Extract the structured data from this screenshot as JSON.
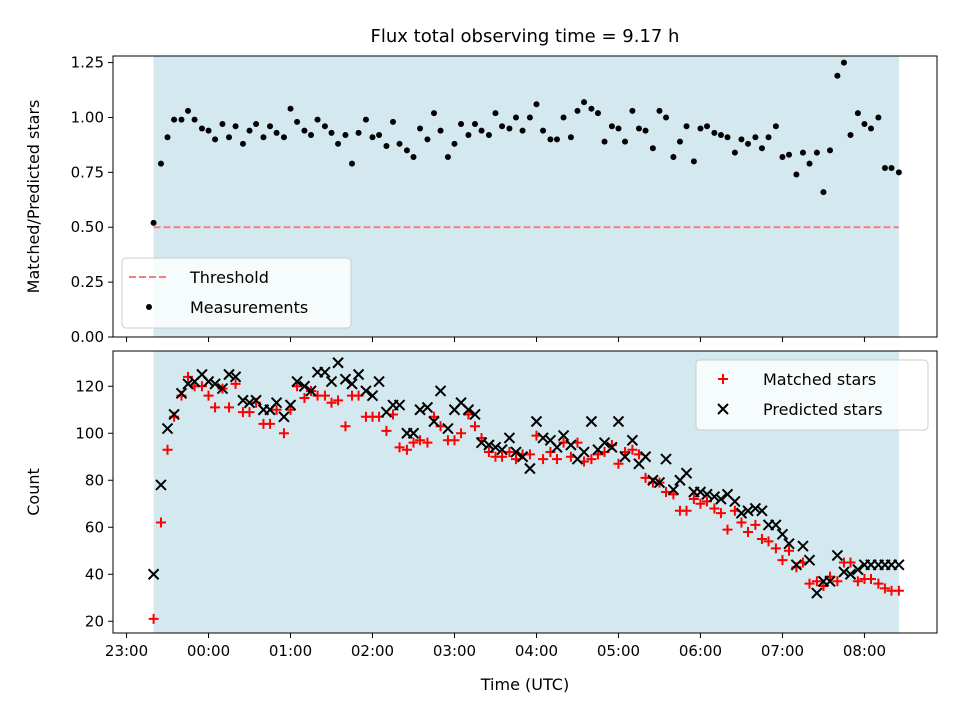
{
  "chart_data": [
    {
      "type": "scatter",
      "title": "Flux total observing time = 9.17 h",
      "ylabel": "Matched/Predicted stars",
      "xlabel": "",
      "ylim": [
        0,
        1.28
      ],
      "yticks": [
        "0.00",
        "0.25",
        "0.50",
        "0.75",
        "1.00",
        "1.25"
      ],
      "ytick_values": [
        0,
        0.25,
        0.5,
        0.75,
        1.0,
        1.25
      ],
      "grid": false,
      "legend_position": "lower-left",
      "shaded_interval": {
        "start": 23.33,
        "end": 8.42,
        "color": "#d3e9ef"
      },
      "threshold": {
        "name": "Threshold",
        "value": 0.5,
        "color": "#f47f7f",
        "style": "dashed"
      },
      "series": [
        {
          "name": "Measurements",
          "color": "#000000",
          "marker": "dot",
          "x": [
            23.33,
            23.42,
            23.5,
            23.58,
            23.67,
            23.75,
            23.83,
            23.92,
            0.0,
            0.08,
            0.17,
            0.25,
            0.33,
            0.42,
            0.5,
            0.58,
            0.67,
            0.75,
            0.83,
            0.92,
            1.0,
            1.08,
            1.17,
            1.25,
            1.33,
            1.42,
            1.5,
            1.58,
            1.67,
            1.75,
            1.83,
            1.92,
            2.0,
            2.08,
            2.17,
            2.25,
            2.33,
            2.42,
            2.5,
            2.58,
            2.67,
            2.75,
            2.83,
            2.92,
            3.0,
            3.08,
            3.17,
            3.25,
            3.33,
            3.42,
            3.5,
            3.58,
            3.67,
            3.75,
            3.83,
            3.92,
            4.0,
            4.08,
            4.17,
            4.25,
            4.33,
            4.42,
            4.5,
            4.58,
            4.67,
            4.75,
            4.83,
            4.92,
            5.0,
            5.08,
            5.17,
            5.25,
            5.33,
            5.42,
            5.5,
            5.58,
            5.67,
            5.75,
            5.83,
            5.92,
            6.0,
            6.08,
            6.17,
            6.25,
            6.33,
            6.42,
            6.5,
            6.58,
            6.67,
            6.75,
            6.83,
            6.92,
            7.0,
            7.08,
            7.17,
            7.25,
            7.33,
            7.42,
            7.5,
            7.58,
            7.67,
            7.75,
            7.83,
            7.92,
            8.0,
            8.08,
            8.17,
            8.25,
            8.33,
            8.42
          ],
          "values": [
            0.52,
            0.79,
            0.91,
            0.99,
            0.99,
            1.03,
            0.99,
            0.95,
            0.94,
            0.9,
            0.97,
            0.91,
            0.96,
            0.88,
            0.94,
            0.97,
            0.91,
            0.96,
            0.93,
            0.91,
            1.04,
            0.98,
            0.94,
            0.92,
            0.99,
            0.96,
            0.93,
            0.88,
            0.92,
            0.79,
            0.93,
            0.99,
            0.91,
            0.92,
            0.87,
            0.98,
            0.88,
            0.85,
            0.82,
            0.95,
            0.9,
            1.02,
            0.94,
            0.82,
            0.88,
            0.97,
            0.92,
            0.97,
            0.94,
            0.92,
            1.02,
            0.96,
            0.95,
            1.0,
            0.94,
            1.0,
            1.06,
            0.94,
            0.9,
            0.9,
            1.0,
            0.91,
            1.03,
            1.07,
            1.04,
            1.02,
            0.89,
            0.96,
            0.95,
            0.89,
            1.03,
            0.95,
            0.94,
            0.86,
            1.03,
            1.0,
            0.82,
            0.89,
            0.96,
            0.8,
            0.95,
            0.96,
            0.93,
            0.92,
            0.91,
            0.84,
            0.9,
            0.88,
            0.91,
            0.86,
            0.91,
            0.96,
            0.82,
            0.83,
            0.74,
            0.84,
            0.79,
            0.84,
            0.66,
            0.85,
            1.19,
            1.25,
            0.92,
            1.02,
            0.97,
            0.95,
            1.0,
            0.77,
            0.77,
            0.75
          ]
        }
      ]
    },
    {
      "type": "scatter",
      "title": "",
      "ylabel": "Count",
      "xlabel": "Time (UTC)",
      "ylim": [
        15,
        135
      ],
      "yticks": [
        "20",
        "40",
        "60",
        "80",
        "100",
        "120"
      ],
      "ytick_values": [
        20,
        40,
        60,
        80,
        100,
        120
      ],
      "xticks": [
        "23:00",
        "00:00",
        "01:00",
        "02:00",
        "03:00",
        "04:00",
        "05:00",
        "06:00",
        "07:00",
        "08:00"
      ],
      "xtick_values": [
        23,
        0,
        1,
        2,
        3,
        4,
        5,
        6,
        7,
        8
      ],
      "grid": false,
      "legend_position": "upper-right",
      "shaded_interval": {
        "start": 23.33,
        "end": 8.42,
        "color": "#d3e9ef"
      },
      "series": [
        {
          "name": "Matched stars",
          "color": "#ff0000",
          "marker": "plus",
          "x": [
            23.33,
            23.42,
            23.5,
            23.58,
            23.67,
            23.75,
            23.83,
            23.92,
            0.0,
            0.08,
            0.17,
            0.25,
            0.33,
            0.42,
            0.5,
            0.58,
            0.67,
            0.75,
            0.83,
            0.92,
            1.0,
            1.08,
            1.17,
            1.25,
            1.33,
            1.42,
            1.5,
            1.58,
            1.67,
            1.75,
            1.83,
            1.92,
            2.0,
            2.08,
            2.17,
            2.25,
            2.33,
            2.42,
            2.5,
            2.58,
            2.67,
            2.75,
            2.83,
            2.92,
            3.0,
            3.08,
            3.17,
            3.25,
            3.33,
            3.42,
            3.5,
            3.58,
            3.67,
            3.75,
            3.83,
            3.92,
            4.0,
            4.08,
            4.17,
            4.25,
            4.33,
            4.42,
            4.5,
            4.58,
            4.67,
            4.75,
            4.83,
            4.92,
            5.0,
            5.08,
            5.17,
            5.25,
            5.33,
            5.42,
            5.5,
            5.58,
            5.67,
            5.75,
            5.83,
            5.92,
            6.0,
            6.08,
            6.17,
            6.25,
            6.33,
            6.42,
            6.5,
            6.58,
            6.67,
            6.75,
            6.83,
            6.92,
            7.0,
            7.08,
            7.17,
            7.25,
            7.33,
            7.42,
            7.5,
            7.58,
            7.67,
            7.75,
            7.83,
            7.92,
            8.0,
            8.08,
            8.17,
            8.25,
            8.33,
            8.42
          ],
          "values": [
            21,
            62,
            93,
            107,
            116,
            124,
            120,
            120,
            116,
            111,
            119,
            111,
            121,
            109,
            109,
            113,
            104,
            104,
            110,
            100,
            110,
            120,
            115,
            118,
            116,
            116,
            113,
            114,
            103,
            116,
            116,
            107,
            107,
            107,
            101,
            108,
            94,
            93,
            96,
            97,
            96,
            107,
            103,
            97,
            97,
            100,
            108,
            103,
            98,
            92,
            90,
            90,
            92,
            89,
            91,
            91,
            99,
            89,
            92,
            89,
            96,
            90,
            96,
            88,
            89,
            91,
            92,
            95,
            87,
            92,
            93,
            91,
            81,
            79,
            79,
            75,
            74,
            67,
            67,
            72,
            70,
            71,
            68,
            66,
            59,
            67,
            62,
            58,
            61,
            55,
            54,
            51,
            46,
            50,
            43,
            45,
            36,
            37,
            35,
            39,
            37,
            45,
            45,
            37,
            38,
            38,
            36,
            34,
            33,
            33
          ]
        },
        {
          "name": "Predicted stars",
          "color": "#000000",
          "marker": "x",
          "x": [
            23.33,
            23.42,
            23.5,
            23.58,
            23.67,
            23.75,
            23.83,
            23.92,
            0.0,
            0.08,
            0.17,
            0.25,
            0.33,
            0.42,
            0.5,
            0.58,
            0.67,
            0.75,
            0.83,
            0.92,
            1.0,
            1.08,
            1.17,
            1.25,
            1.33,
            1.42,
            1.5,
            1.58,
            1.67,
            1.75,
            1.83,
            1.92,
            2.0,
            2.08,
            2.17,
            2.25,
            2.33,
            2.42,
            2.5,
            2.58,
            2.67,
            2.75,
            2.83,
            2.92,
            3.0,
            3.08,
            3.17,
            3.25,
            3.33,
            3.42,
            3.5,
            3.58,
            3.67,
            3.75,
            3.83,
            3.92,
            4.0,
            4.08,
            4.17,
            4.25,
            4.33,
            4.42,
            4.5,
            4.58,
            4.67,
            4.75,
            4.83,
            4.92,
            5.0,
            5.08,
            5.17,
            5.25,
            5.33,
            5.42,
            5.5,
            5.58,
            5.67,
            5.75,
            5.83,
            5.92,
            6.0,
            6.08,
            6.17,
            6.25,
            6.33,
            6.42,
            6.5,
            6.58,
            6.67,
            6.75,
            6.83,
            6.92,
            7.0,
            7.08,
            7.17,
            7.25,
            7.33,
            7.42,
            7.5,
            7.58,
            7.67,
            7.75,
            7.83,
            7.92,
            8.0,
            8.08,
            8.17,
            8.25,
            8.33,
            8.42
          ],
          "values": [
            40,
            78,
            102,
            108,
            117,
            121,
            122,
            125,
            122,
            121,
            119,
            125,
            124,
            114,
            113,
            114,
            110,
            110,
            113,
            107,
            112,
            122,
            120,
            118,
            126,
            126,
            122,
            130,
            123,
            121,
            125,
            118,
            116,
            122,
            109,
            112,
            112,
            100,
            100,
            110,
            111,
            105,
            118,
            102,
            110,
            113,
            110,
            108,
            96,
            95,
            94,
            93,
            98,
            92,
            90,
            85,
            105,
            98,
            97,
            94,
            99,
            95,
            89,
            92,
            105,
            93,
            96,
            94,
            105,
            90,
            97,
            87,
            90,
            80,
            79,
            89,
            76,
            80,
            83,
            75,
            75,
            74,
            73,
            72,
            74,
            71,
            66,
            67,
            68,
            67,
            61,
            61,
            57,
            53,
            44,
            52,
            46,
            32,
            37,
            37,
            48,
            41,
            40,
            42,
            44,
            44,
            44,
            44,
            44,
            44
          ]
        }
      ]
    }
  ]
}
